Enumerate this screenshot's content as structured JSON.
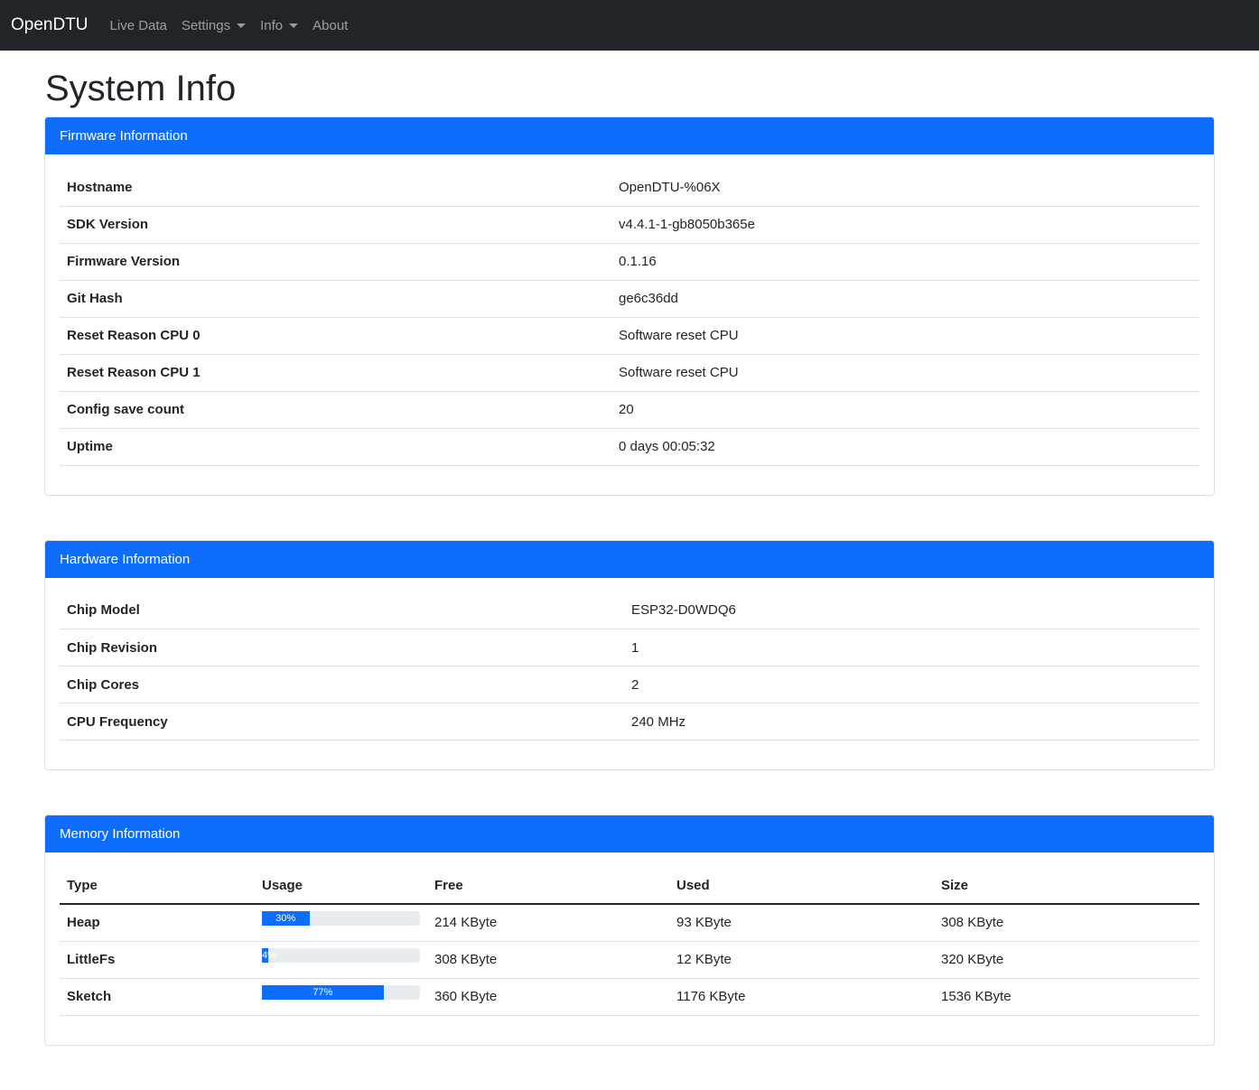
{
  "nav": {
    "brand": "OpenDTU",
    "items": [
      {
        "label": "Live Data"
      },
      {
        "label": "Settings",
        "dropdown": true
      },
      {
        "label": "Info",
        "dropdown": true
      },
      {
        "label": "About"
      }
    ]
  },
  "page_title": "System Info",
  "firmware": {
    "title": "Firmware Information",
    "rows": [
      {
        "label": "Hostname",
        "value": "OpenDTU-%06X"
      },
      {
        "label": "SDK Version",
        "value": "v4.4.1-1-gb8050b365e"
      },
      {
        "label": "Firmware Version",
        "value": "0.1.16"
      },
      {
        "label": "Git Hash",
        "value": "ge6c36dd"
      },
      {
        "label": "Reset Reason CPU 0",
        "value": "Software reset CPU"
      },
      {
        "label": "Reset Reason CPU 1",
        "value": "Software reset CPU"
      },
      {
        "label": "Config save count",
        "value": "20"
      },
      {
        "label": "Uptime",
        "value": "0 days 00:05:32"
      }
    ]
  },
  "hardware": {
    "title": "Hardware Information",
    "rows": [
      {
        "label": "Chip Model",
        "value": "ESP32-D0WDQ6"
      },
      {
        "label": "Chip Revision",
        "value": "1"
      },
      {
        "label": "Chip Cores",
        "value": "2"
      },
      {
        "label": "CPU Frequency",
        "value": "240 MHz"
      }
    ]
  },
  "memory": {
    "title": "Memory Information",
    "headers": [
      "Type",
      "Usage",
      "Free",
      "Used",
      "Size"
    ],
    "rows": [
      {
        "type": "Heap",
        "usage": 30,
        "usage_label": "30%",
        "free": "214 KByte",
        "used": "93 KByte",
        "size": "308 KByte"
      },
      {
        "type": "LittleFs",
        "usage": 4,
        "usage_label": "4%",
        "free": "308 KByte",
        "used": "12 KByte",
        "size": "320 KByte"
      },
      {
        "type": "Sketch",
        "usage": 77,
        "usage_label": "77%",
        "free": "360 KByte",
        "used": "1176 KByte",
        "size": "1536 KByte"
      }
    ]
  },
  "colors": {
    "navbar": "#212529",
    "primary": "#0d6efd"
  }
}
